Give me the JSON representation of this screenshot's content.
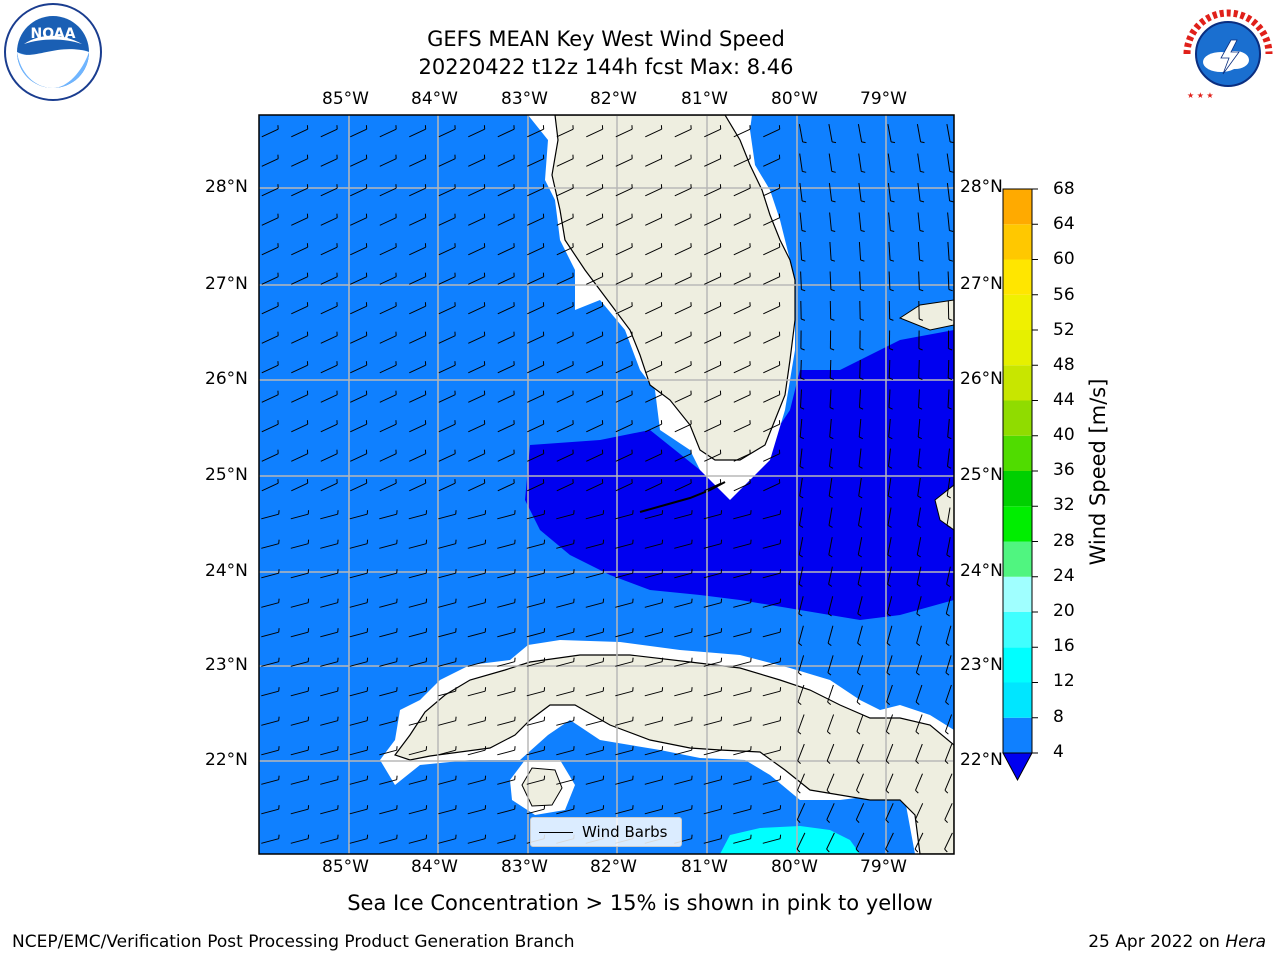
{
  "title": {
    "line1": "GEFS MEAN Key West Wind Speed",
    "line2": "20220422 t12z 144h fcst   Max: 8.46"
  },
  "logos": {
    "left": "NOAA",
    "right": "NATIONAL WEATHER SERVICE"
  },
  "map": {
    "lat_labels": [
      "28°N",
      "27°N",
      "26°N",
      "25°N",
      "24°N",
      "23°N",
      "22°N"
    ],
    "lon_labels": [
      "85°W",
      "84°W",
      "83°W",
      "82°W",
      "81°W",
      "80°W",
      "79°W"
    ],
    "legend": {
      "label": "Wind Barbs"
    },
    "colors": {
      "land": "#eeeee0",
      "ocean_4_8": "#0f80ff",
      "ocean_below_4": "#0000f0",
      "ocean_8_12": "#00ffff"
    }
  },
  "colorbar": {
    "label": "Wind Speed [m/s]",
    "ticks": [
      "68",
      "64",
      "60",
      "56",
      "52",
      "48",
      "44",
      "40",
      "36",
      "32",
      "28",
      "24",
      "20",
      "16",
      "12",
      "8",
      "4"
    ],
    "colors": [
      "#0f80ff",
      "#00e6ff",
      "#00ffff",
      "#40ffff",
      "#a0ffff",
      "#50f580",
      "#00ee00",
      "#00d000",
      "#50dc00",
      "#90dc00",
      "#c8e600",
      "#e6f000",
      "#f0f000",
      "#ffe600",
      "#ffc800",
      "#ffaa00",
      "#ff8c00",
      "#ff6400",
      "#ff3c00",
      "#ff0000"
    ]
  },
  "footer": {
    "note": "Sea Ice Concentration > 15% is shown in pink to yellow",
    "credit": "NCEP/EMC/Verification Post Processing Product Generation Branch",
    "date": "25 Apr 2022 on ",
    "machine": "Hera"
  }
}
